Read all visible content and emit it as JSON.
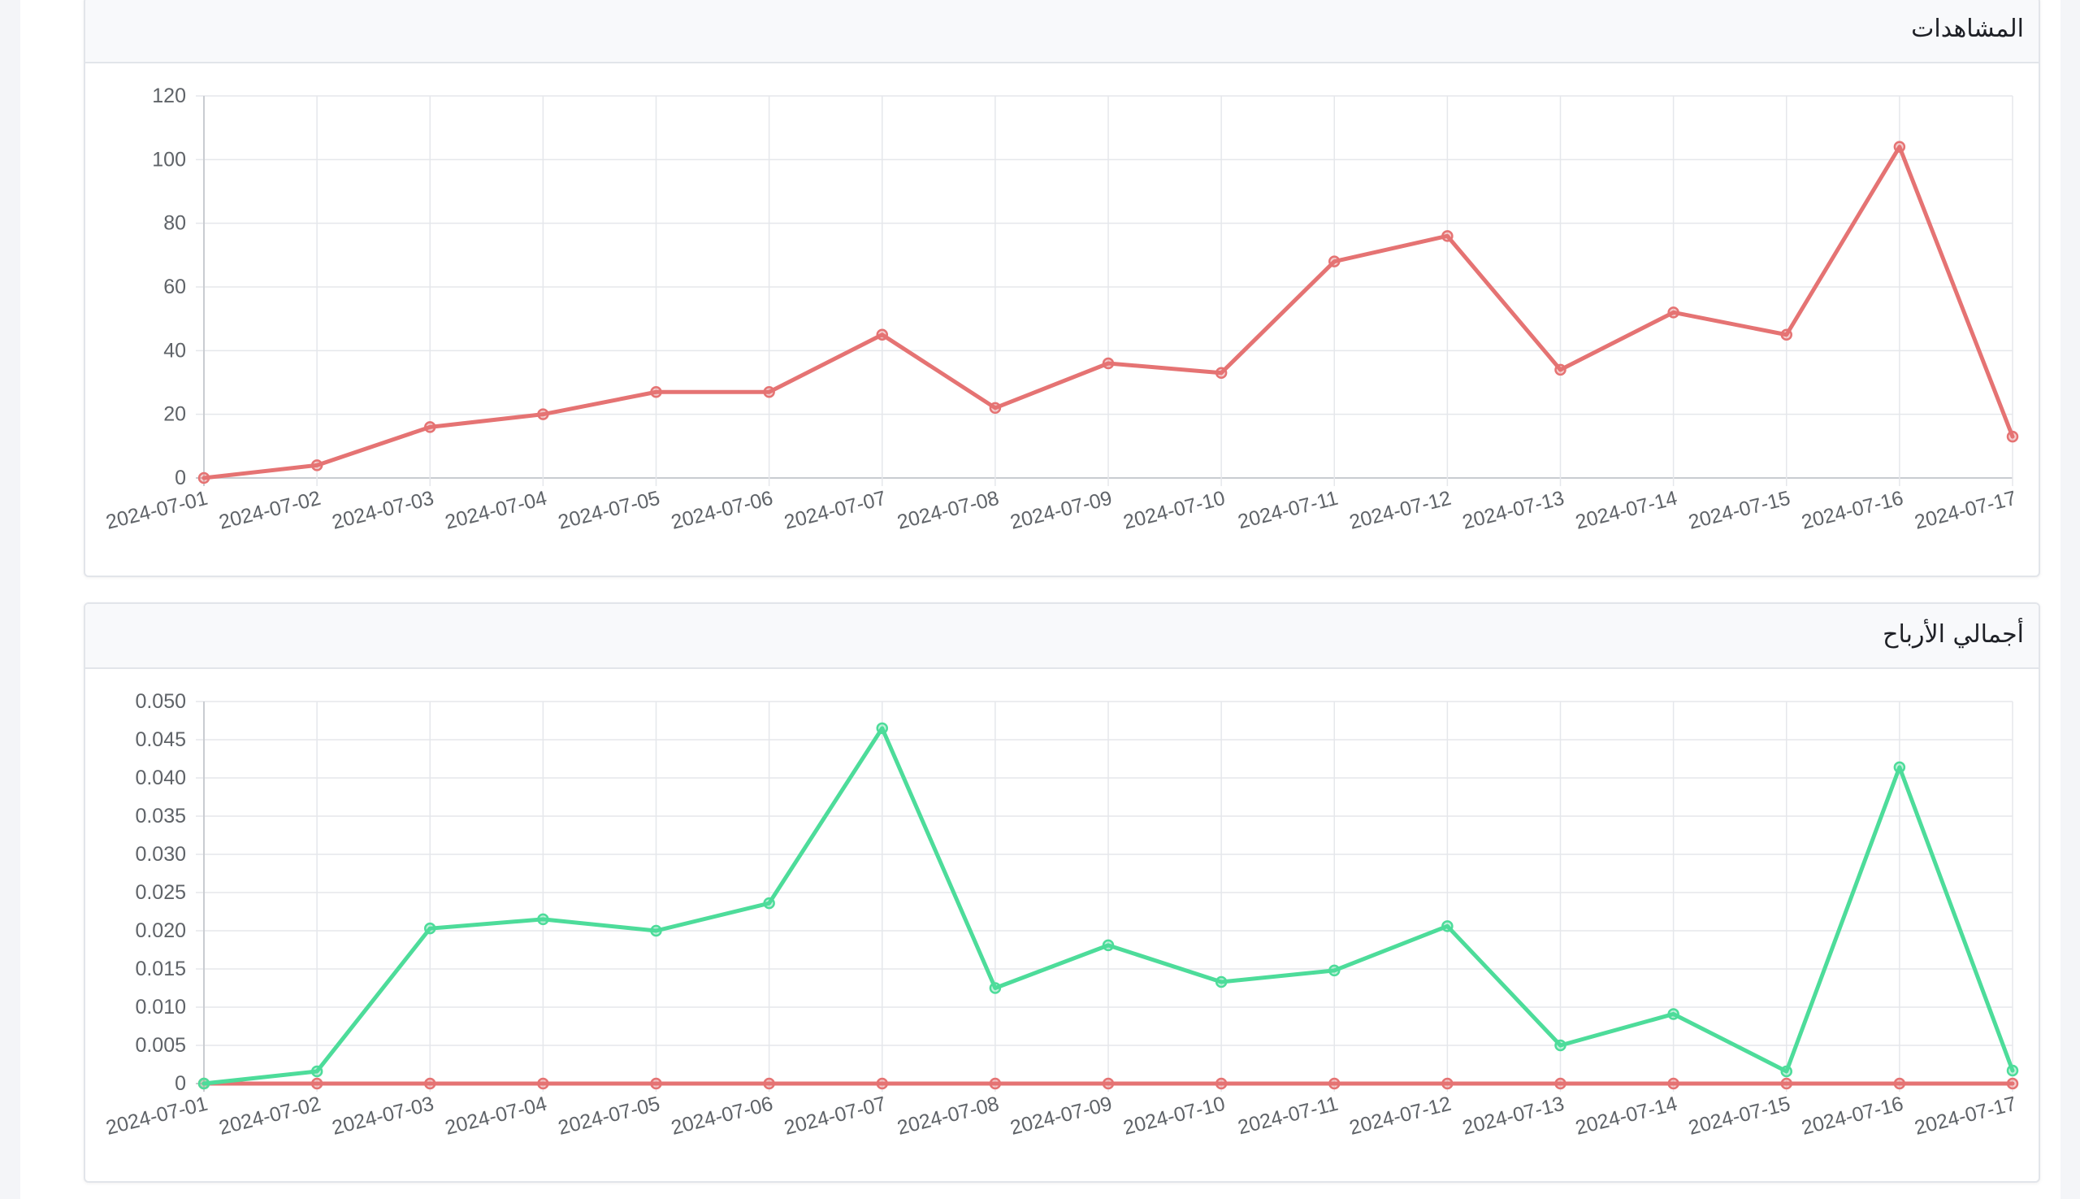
{
  "charts": [
    {
      "title": "المشاهدات",
      "chart_data": {
        "type": "line",
        "title": "المشاهدات",
        "x": [
          "2024-07-01",
          "2024-07-02",
          "2024-07-03",
          "2024-07-04",
          "2024-07-05",
          "2024-07-06",
          "2024-07-07",
          "2024-07-08",
          "2024-07-09",
          "2024-07-10",
          "2024-07-11",
          "2024-07-12",
          "2024-07-13",
          "2024-07-14",
          "2024-07-15",
          "2024-07-16",
          "2024-07-17"
        ],
        "series": [
          {
            "color": "#e57373",
            "values": [
              0,
              4,
              16,
              20,
              27,
              27,
              45,
              22,
              36,
              33,
              68,
              76,
              34,
              52,
              45,
              104,
              13
            ]
          }
        ],
        "yticks": [
          "0",
          "20",
          "40",
          "60",
          "80",
          "100",
          "120"
        ],
        "ylim": [
          0,
          120
        ],
        "grid": true,
        "legend": "none"
      }
    },
    {
      "title": "أجمالي الأرباح",
      "chart_data": {
        "type": "line",
        "title": "أجمالي الأرباح",
        "x": [
          "2024-07-01",
          "2024-07-02",
          "2024-07-03",
          "2024-07-04",
          "2024-07-05",
          "2024-07-06",
          "2024-07-07",
          "2024-07-08",
          "2024-07-09",
          "2024-07-10",
          "2024-07-11",
          "2024-07-12",
          "2024-07-13",
          "2024-07-14",
          "2024-07-15",
          "2024-07-16",
          "2024-07-17"
        ],
        "series": [
          {
            "color": "#4ddc9a",
            "values": [
              0,
              0.0016,
              0.0203,
              0.0215,
              0.02,
              0.0236,
              0.0465,
              0.0125,
              0.0181,
              0.0133,
              0.0148,
              0.0206,
              0.005,
              0.0091,
              0.0016,
              0.0414,
              0.0017
            ]
          },
          {
            "color": "#e57373",
            "values": [
              0,
              0,
              0,
              0,
              0,
              0,
              0,
              0,
              0,
              0,
              0,
              0,
              0,
              0,
              0,
              0,
              0
            ]
          }
        ],
        "yticks": [
          "0",
          "0.005",
          "0.010",
          "0.015",
          "0.020",
          "0.025",
          "0.030",
          "0.035",
          "0.040",
          "0.045",
          "0.050"
        ],
        "ylim": [
          0,
          0.05
        ],
        "grid": true,
        "legend": "none"
      }
    }
  ]
}
